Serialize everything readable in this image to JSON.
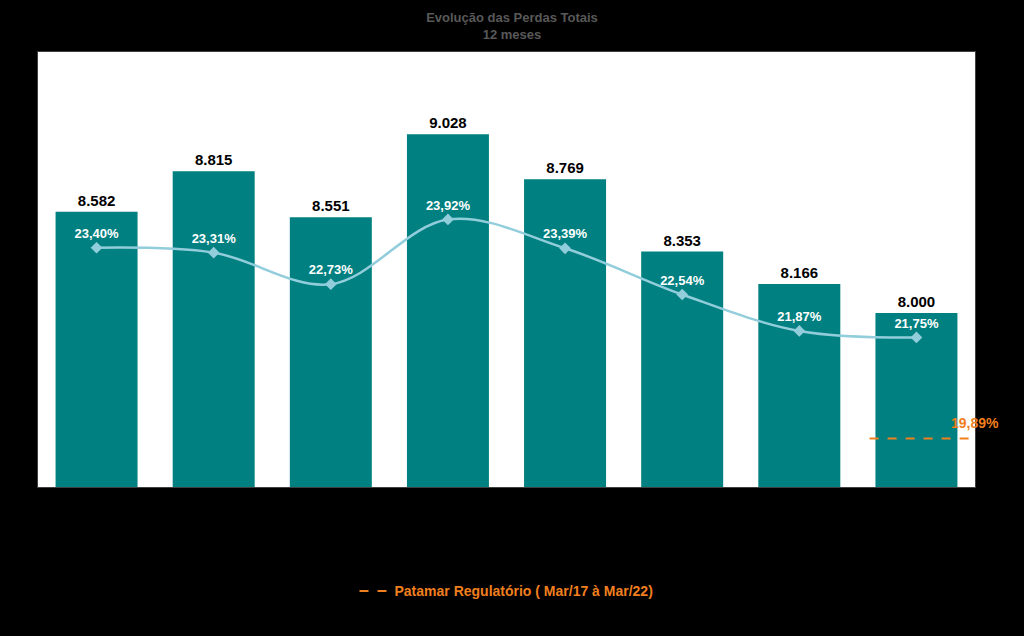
{
  "chart_data": {
    "type": "bar",
    "title": "Evolução das Perdas Totais",
    "subtitle": "12 meses",
    "categories": [
      null,
      null,
      null,
      null,
      null,
      null,
      null,
      null
    ],
    "series": [
      {
        "type": "bar",
        "color": "#008080",
        "values": [
          8582,
          8815,
          8551,
          9028,
          8769,
          8353,
          8166,
          8000
        ],
        "value_labels": [
          "8.582",
          "8.815",
          "8.551",
          "9.028",
          "8.769",
          "8.353",
          "8.166",
          "8.000"
        ]
      },
      {
        "type": "line",
        "axis": "y2",
        "color": "#92cddc",
        "marker": "diamond",
        "values": [
          23.4,
          23.31,
          22.73,
          23.92,
          23.39,
          22.54,
          21.87,
          21.75
        ],
        "value_labels": [
          "23,40%",
          "23,31%",
          "22,73%",
          "23,92%",
          "23,39%",
          "22,54%",
          "21,87%",
          "21,75%"
        ]
      }
    ],
    "reference_line": {
      "name": "Patamar Regulatório ( Mar/17 à Mar/22)",
      "axis": "y2",
      "value": 19.89,
      "value_label": "19,89%",
      "color": "#f07f1f",
      "line_style": "dashed"
    },
    "ylim": [
      7000,
      9500
    ],
    "yticks": [],
    "y2lim": [
      19,
      27
    ],
    "y2ticks": [],
    "data_labels": true,
    "tick_labels": false,
    "grid": false
  }
}
